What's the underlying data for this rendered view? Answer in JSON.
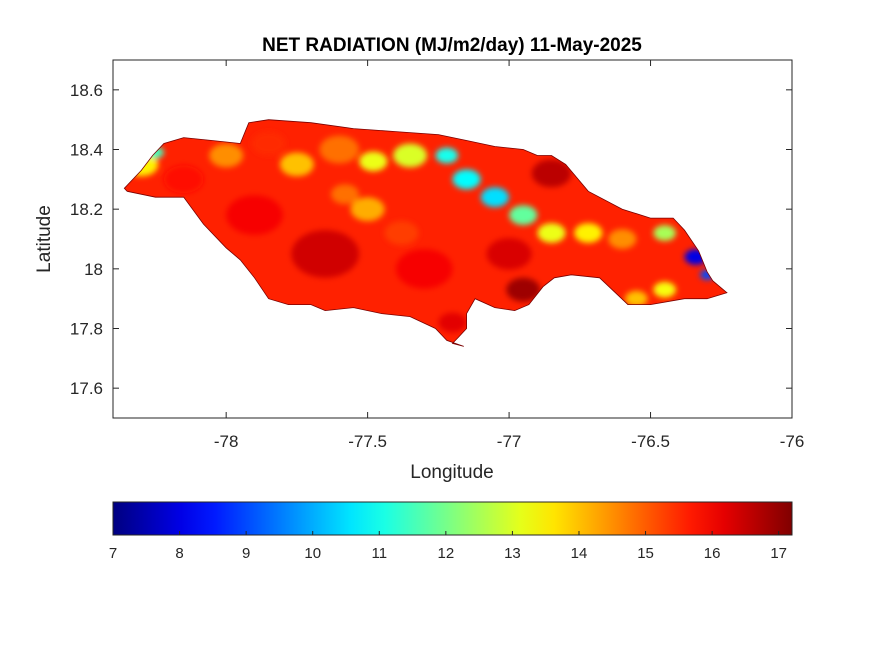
{
  "chart_data": {
    "type": "heatmap",
    "title": "NET RADIATION (MJ/m2/day) 11-May-2025",
    "xlabel": "Longitude",
    "ylabel": "Latitude",
    "xlim": [
      -78.4,
      -76
    ],
    "ylim": [
      17.5,
      18.7
    ],
    "x_ticks": [
      -78,
      -77.5,
      -77,
      -76.5,
      -76
    ],
    "y_ticks": [
      17.6,
      17.8,
      18,
      18.2,
      18.4,
      18.6
    ],
    "x_tick_labels": [
      "-78",
      "-77.5",
      "-77",
      "-76.5",
      "-76"
    ],
    "y_tick_labels": [
      "17.6",
      "17.8",
      "18",
      "18.2",
      "18.4",
      "18.6"
    ],
    "colormap": "jet",
    "clim": [
      7,
      17.2
    ],
    "colorbar_ticks": [
      7,
      8,
      9,
      10,
      11,
      12,
      13,
      14,
      15,
      16,
      17
    ],
    "colorbar_tick_labels": [
      "7",
      "8",
      "9",
      "10",
      "11",
      "12",
      "13",
      "14",
      "15",
      "16",
      "17"
    ],
    "colorbar_location": "south-outside",
    "region_outline": [
      [
        -78.36,
        18.27
      ],
      [
        -78.3,
        18.33
      ],
      [
        -78.26,
        18.38
      ],
      [
        -78.22,
        18.42
      ],
      [
        -78.15,
        18.44
      ],
      [
        -78.05,
        18.43
      ],
      [
        -77.95,
        18.42
      ],
      [
        -77.92,
        18.49
      ],
      [
        -77.85,
        18.5
      ],
      [
        -77.7,
        18.49
      ],
      [
        -77.55,
        18.47
      ],
      [
        -77.4,
        18.46
      ],
      [
        -77.25,
        18.45
      ],
      [
        -77.15,
        18.43
      ],
      [
        -77.05,
        18.41
      ],
      [
        -76.95,
        18.4
      ],
      [
        -76.9,
        18.38
      ],
      [
        -76.85,
        18.38
      ],
      [
        -76.8,
        18.35
      ],
      [
        -76.72,
        18.26
      ],
      [
        -76.6,
        18.2
      ],
      [
        -76.5,
        18.17
      ],
      [
        -76.42,
        18.17
      ],
      [
        -76.38,
        18.13
      ],
      [
        -76.33,
        18.06
      ],
      [
        -76.3,
        17.99
      ],
      [
        -76.28,
        17.96
      ],
      [
        -76.23,
        17.92
      ],
      [
        -76.3,
        17.9
      ],
      [
        -76.38,
        17.9
      ],
      [
        -76.5,
        17.88
      ],
      [
        -76.58,
        17.88
      ],
      [
        -76.68,
        17.97
      ],
      [
        -76.78,
        17.98
      ],
      [
        -76.84,
        17.97
      ],
      [
        -76.88,
        17.94
      ],
      [
        -76.93,
        17.88
      ],
      [
        -76.98,
        17.86
      ],
      [
        -77.05,
        17.87
      ],
      [
        -77.12,
        17.9
      ],
      [
        -77.15,
        17.85
      ],
      [
        -77.15,
        17.8
      ],
      [
        -77.18,
        17.77
      ],
      [
        -77.2,
        17.75
      ],
      [
        -77.16,
        17.74
      ],
      [
        -77.22,
        17.76
      ],
      [
        -77.26,
        17.8
      ],
      [
        -77.35,
        17.84
      ],
      [
        -77.45,
        17.85
      ],
      [
        -77.55,
        17.87
      ],
      [
        -77.65,
        17.86
      ],
      [
        -77.7,
        17.88
      ],
      [
        -77.78,
        17.88
      ],
      [
        -77.85,
        17.9
      ],
      [
        -77.9,
        17.97
      ],
      [
        -77.95,
        18.03
      ],
      [
        -78.0,
        18.07
      ],
      [
        -78.08,
        18.15
      ],
      [
        -78.15,
        18.24
      ],
      [
        -78.25,
        18.24
      ],
      [
        -78.35,
        18.26
      ]
    ],
    "value_field": [
      {
        "lon": -78.3,
        "lat": 18.35,
        "value": 13.5,
        "radius": 0.06
      },
      {
        "lon": -78.25,
        "lat": 18.39,
        "value": 11.5,
        "radius": 0.03
      },
      {
        "lon": -78.15,
        "lat": 18.3,
        "value": 15.8,
        "radius": 0.07
      },
      {
        "lon": -78.0,
        "lat": 18.38,
        "value": 14.5,
        "radius": 0.06
      },
      {
        "lon": -77.85,
        "lat": 18.42,
        "value": 15.5,
        "radius": 0.06
      },
      {
        "lon": -77.75,
        "lat": 18.35,
        "value": 14.0,
        "radius": 0.06
      },
      {
        "lon": -77.6,
        "lat": 18.4,
        "value": 14.8,
        "radius": 0.07
      },
      {
        "lon": -77.48,
        "lat": 18.36,
        "value": 13.2,
        "radius": 0.05
      },
      {
        "lon": -77.35,
        "lat": 18.38,
        "value": 13.0,
        "radius": 0.06
      },
      {
        "lon": -77.22,
        "lat": 18.38,
        "value": 11.0,
        "radius": 0.04
      },
      {
        "lon": -77.15,
        "lat": 18.3,
        "value": 10.8,
        "radius": 0.05
      },
      {
        "lon": -77.05,
        "lat": 18.24,
        "value": 10.5,
        "radius": 0.05
      },
      {
        "lon": -76.95,
        "lat": 18.18,
        "value": 11.8,
        "radius": 0.05
      },
      {
        "lon": -76.85,
        "lat": 18.12,
        "value": 13.2,
        "radius": 0.05
      },
      {
        "lon": -76.72,
        "lat": 18.12,
        "value": 13.5,
        "radius": 0.05
      },
      {
        "lon": -76.6,
        "lat": 18.1,
        "value": 14.5,
        "radius": 0.05
      },
      {
        "lon": -76.45,
        "lat": 18.12,
        "value": 12.5,
        "radius": 0.04
      },
      {
        "lon": -76.34,
        "lat": 18.04,
        "value": 8.0,
        "radius": 0.04
      },
      {
        "lon": -76.3,
        "lat": 17.98,
        "value": 9.0,
        "radius": 0.025
      },
      {
        "lon": -76.45,
        "lat": 17.93,
        "value": 13.3,
        "radius": 0.04
      },
      {
        "lon": -76.55,
        "lat": 17.9,
        "value": 14.0,
        "radius": 0.04
      },
      {
        "lon": -76.85,
        "lat": 18.32,
        "value": 16.6,
        "radius": 0.07
      },
      {
        "lon": -77.0,
        "lat": 18.05,
        "value": 16.3,
        "radius": 0.08
      },
      {
        "lon": -76.95,
        "lat": 17.93,
        "value": 16.9,
        "radius": 0.06
      },
      {
        "lon": -77.3,
        "lat": 18.0,
        "value": 16.0,
        "radius": 0.1
      },
      {
        "lon": -77.2,
        "lat": 17.82,
        "value": 16.2,
        "radius": 0.05
      },
      {
        "lon": -77.65,
        "lat": 18.05,
        "value": 16.4,
        "radius": 0.12
      },
      {
        "lon": -77.9,
        "lat": 18.18,
        "value": 16.0,
        "radius": 0.1
      },
      {
        "lon": -77.5,
        "lat": 18.2,
        "value": 14.2,
        "radius": 0.06
      },
      {
        "lon": -77.58,
        "lat": 18.25,
        "value": 14.8,
        "radius": 0.05
      },
      {
        "lon": -77.38,
        "lat": 18.12,
        "value": 15.3,
        "radius": 0.06
      }
    ],
    "background_value": 15.6
  }
}
